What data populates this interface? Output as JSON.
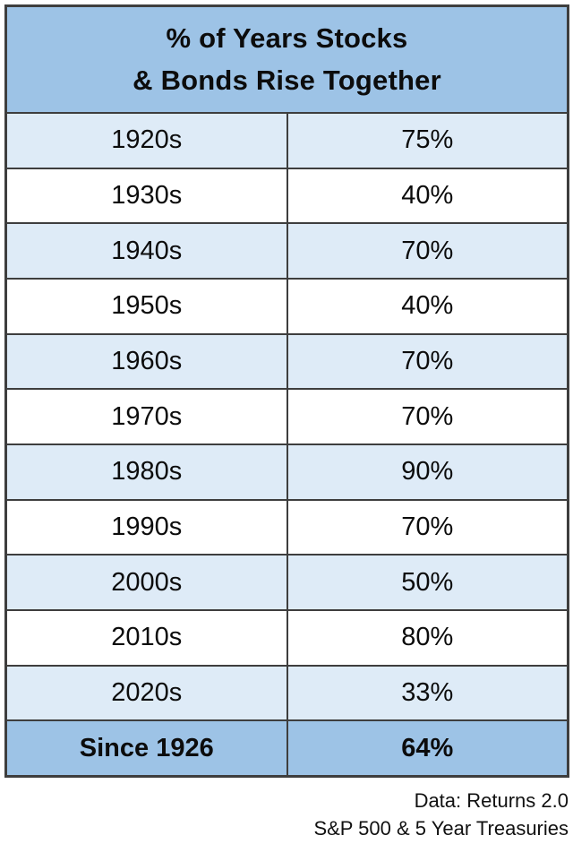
{
  "title": {
    "line1": "% of Years Stocks",
    "line2": "& Bonds Rise Together"
  },
  "chart_data": {
    "type": "table",
    "title": "% of Years Stocks & Bonds Rise Together",
    "columns": [
      "Decade",
      "Percent of years stocks and bonds rise together"
    ],
    "rows": [
      {
        "label": "1920s",
        "value": "75%"
      },
      {
        "label": "1930s",
        "value": "40%"
      },
      {
        "label": "1940s",
        "value": "70%"
      },
      {
        "label": "1950s",
        "value": "40%"
      },
      {
        "label": "1960s",
        "value": "70%"
      },
      {
        "label": "1970s",
        "value": "70%"
      },
      {
        "label": "1980s",
        "value": "90%"
      },
      {
        "label": "1990s",
        "value": "70%"
      },
      {
        "label": "2000s",
        "value": "50%"
      },
      {
        "label": "2010s",
        "value": "80%"
      },
      {
        "label": "2020s",
        "value": "33%"
      },
      {
        "label": "Since 1926",
        "value": "64%"
      }
    ]
  },
  "footer": {
    "line1": "Data: Returns 2.0",
    "line2": "S&P 500 & 5 Year Treasuries"
  },
  "colors": {
    "header_bg": "#9dc3e6",
    "summary_row_bg": "#9dc3e6",
    "alt_row_bg": "#deebf7",
    "row_bg": "#ffffff",
    "border": "#3e3e3e",
    "text": "#0c0c0c"
  }
}
